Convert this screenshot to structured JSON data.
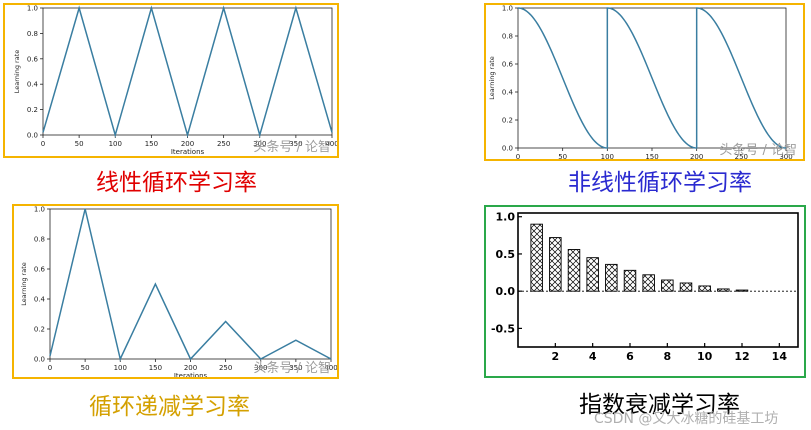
{
  "chart_data": [
    {
      "type": "line",
      "caption": "线性循环学习率",
      "xlabel": "Iterations",
      "ylabel": "Learning rate",
      "xlim": [
        0,
        400
      ],
      "ylim": [
        0,
        1
      ],
      "xticks": [
        "0",
        "50",
        "100",
        "150",
        "200",
        "250",
        "300",
        "350",
        "400"
      ],
      "yticks": [
        "0.0",
        "0.2",
        "0.4",
        "0.6",
        "0.8",
        "1.0"
      ],
      "x": [
        0,
        50,
        100,
        150,
        200,
        250,
        300,
        350,
        400
      ],
      "values": [
        0.02,
        1.0,
        0.0,
        1.0,
        0.0,
        1.0,
        0.0,
        1.0,
        0.02
      ],
      "grid": false,
      "watermark": "头条号 / 论智",
      "colors": {
        "line": "#3a7ea1",
        "frame": "#f5b400",
        "caption": "#e00000"
      }
    },
    {
      "type": "line",
      "caption": "非线性循环学习率",
      "xlabel": "Iterations",
      "ylabel": "Learning rate",
      "xlim": [
        0,
        300
      ],
      "ylim": [
        0,
        1
      ],
      "xticks": [
        "0",
        "50",
        "100",
        "150",
        "200",
        "250",
        "300"
      ],
      "yticks": [
        "0.0",
        "0.2",
        "0.4",
        "0.6",
        "0.8",
        "1.0"
      ],
      "cycle_length": 100,
      "cycles": 3,
      "curve": "cosine restart",
      "grid": false,
      "watermark": "头条号 / 论智",
      "colors": {
        "line": "#3a7ea1",
        "frame": "#f5b400",
        "caption": "#2a2ad0"
      }
    },
    {
      "type": "line",
      "caption": "循环递减学习率",
      "xlabel": "Iterations",
      "ylabel": "Learning rate",
      "xlim": [
        0,
        400
      ],
      "ylim": [
        0,
        1
      ],
      "xticks": [
        "0",
        "50",
        "100",
        "150",
        "200",
        "250",
        "300",
        "350",
        "400"
      ],
      "yticks": [
        "0.0",
        "0.2",
        "0.4",
        "0.6",
        "0.8",
        "1.0"
      ],
      "x": [
        0,
        50,
        100,
        150,
        200,
        250,
        300,
        350,
        400
      ],
      "values": [
        0.02,
        1.0,
        0.0,
        0.5,
        0.0,
        0.25,
        0.0,
        0.125,
        0.0
      ],
      "grid": false,
      "watermark": "头条号 / 论智",
      "colors": {
        "line": "#3a7ea1",
        "frame": "#f5b400",
        "caption": "#d4a000"
      }
    },
    {
      "type": "bar",
      "caption": "指数衰减学习率",
      "categories": [
        1,
        2,
        3,
        4,
        5,
        6,
        7,
        8,
        9,
        10,
        11,
        12
      ],
      "values": [
        0.9,
        0.72,
        0.56,
        0.45,
        0.36,
        0.28,
        0.22,
        0.15,
        0.11,
        0.07,
        0.03,
        0.015
      ],
      "xlim": [
        0,
        15
      ],
      "ylim": [
        -0.75,
        1.05
      ],
      "xticks": [
        "2",
        "4",
        "6",
        "8",
        "10",
        "12",
        "14"
      ],
      "yticks": [
        "1.0",
        "0.5",
        "0.0",
        "-0.5"
      ],
      "pattern": "cross-hatch",
      "grid": false,
      "colors": {
        "bar": "#000000",
        "frame": "#2aa84a",
        "caption": "#000000"
      }
    }
  ],
  "footer": {
    "credit": "CSDN @又大冰糖的硅基工坊"
  }
}
